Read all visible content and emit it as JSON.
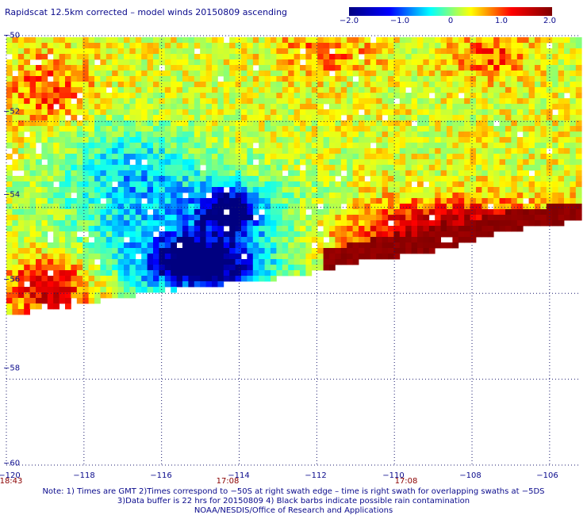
{
  "title": "Rapidscat 12.5km corrected – model winds 20150809 ascending",
  "colorbar": {
    "ticks": [
      "−2.0",
      "−1.0",
      "0",
      "1.0",
      "2.0"
    ],
    "tick_values": [
      -2.0,
      -1.0,
      0,
      1.0,
      2.0
    ],
    "colors": [
      "#000080",
      "#0000ff",
      "#00ffff",
      "#ffff00",
      "#ff0000",
      "#800000"
    ]
  },
  "y_axis": {
    "ticks": [
      "−50",
      "−52",
      "−54",
      "−56",
      "−58",
      "−60"
    ],
    "values": [
      -50,
      -52,
      -54,
      -56,
      -58,
      -60
    ],
    "range": [
      -50,
      -60
    ]
  },
  "x_axis": {
    "ticks": [
      "−120",
      "−118",
      "−116",
      "−114",
      "−112",
      "−110",
      "−108",
      "−106"
    ],
    "values": [
      -120,
      -118,
      -116,
      -114,
      -112,
      -110,
      -108,
      -106
    ],
    "range": [
      -120,
      -105.2
    ]
  },
  "time_labels": [
    {
      "text": "18:43",
      "lon": -120
    },
    {
      "text": "17:08",
      "lon": -114
    },
    {
      "text": "17:08",
      "lon": -110
    }
  ],
  "notes": [
    "Note: 1) Times are GMT 2)Times correspond to −50S at right swath edge – time is right swath for overlapping swaths at −5DS",
    "3)Data buffer is 22 hrs for 20150809 4) Black barbs indicate possible rain contamination",
    "NOAA/NESDIS/Office of Research and Applications"
  ],
  "chart_data": {
    "type": "heatmap",
    "title": "Rapidscat 12.5km corrected – model winds 20150809 ascending",
    "value_range": [
      -2.0,
      2.0
    ],
    "grid": true,
    "swath_lower_edge": [
      {
        "lon": -120,
        "lat": -56.5
      },
      {
        "lon": -118.4,
        "lat": -56.3
      },
      {
        "lon": -117.2,
        "lat": -56.1
      },
      {
        "lon": -116.4,
        "lat": -56.0
      },
      {
        "lon": -114.6,
        "lat": -55.8
      },
      {
        "lon": -112.4,
        "lat": -55.6
      },
      {
        "lon": -111.6,
        "lat": -55.4
      },
      {
        "lon": -110.6,
        "lat": -55.2
      },
      {
        "lon": -109.4,
        "lat": -55.1
      },
      {
        "lon": -108.4,
        "lat": -54.9
      },
      {
        "lon": -107.4,
        "lat": -54.6
      },
      {
        "lon": -105.2,
        "lat": -54.3
      }
    ],
    "regions": [
      {
        "name": "strong negative",
        "lon": [
          -116.6,
          -113.4
        ],
        "lat": [
          -54.8,
          -55.9
        ],
        "value": -1.8
      },
      {
        "name": "strong negative",
        "lon": [
          -114.8,
          -113.6
        ],
        "lat": [
          -53.7,
          -54.4
        ],
        "value": -1.7
      },
      {
        "name": "negative",
        "lon": [
          -119.0,
          -111.6
        ],
        "lat": [
          -53.0,
          -56.0
        ],
        "value": -0.9
      },
      {
        "name": "negative",
        "lon": [
          -118.8,
          -115.0
        ],
        "lat": [
          -52.0,
          -54.0
        ],
        "value": -0.6
      },
      {
        "name": "strong positive",
        "lon": [
          -111.8,
          -105.2
        ],
        "lat": [
          -54.0,
          -55.3
        ],
        "value": 2.0
      },
      {
        "name": "positive",
        "lon": [
          -120.0,
          -117.8
        ],
        "lat": [
          -50.5,
          -52.0
        ],
        "value": 1.0
      },
      {
        "name": "positive",
        "lon": [
          -120.0,
          -117.8
        ],
        "lat": [
          -55.2,
          -56.5
        ],
        "value": 1.6
      },
      {
        "name": "positive",
        "lon": [
          -113.0,
          -110.5
        ],
        "lat": [
          -50.0,
          -50.8
        ],
        "value": 0.9
      },
      {
        "name": "positive",
        "lon": [
          -108.4,
          -106.6
        ],
        "lat": [
          -50.0,
          -50.9
        ],
        "value": 1.0
      }
    ]
  }
}
